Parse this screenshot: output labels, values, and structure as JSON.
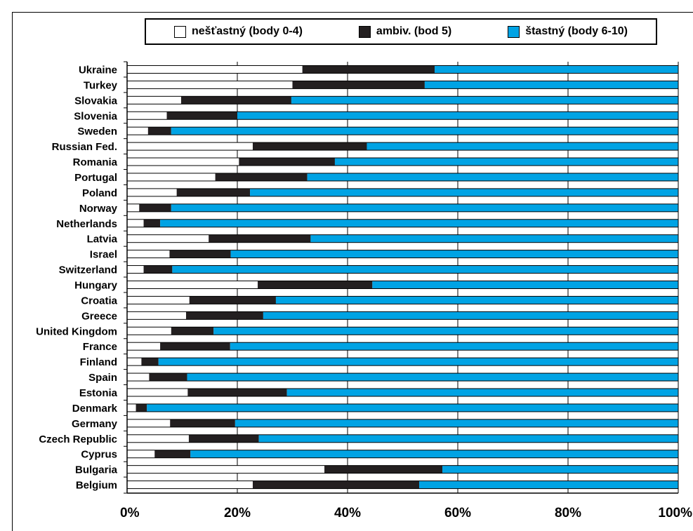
{
  "chart_data": {
    "type": "bar",
    "orientation": "horizontal",
    "stacked": true,
    "percent": true,
    "categories": [
      "Ukraine",
      "Turkey",
      "Slovakia",
      "Slovenia",
      "Sweden",
      "Russian Fed.",
      "Romania",
      "Portugal",
      "Poland",
      "Norway",
      "Netherlands",
      "Latvia",
      "Israel",
      "Switzerland",
      "Hungary",
      "Croatia",
      "Greece",
      "United Kingdom",
      "France",
      "Finland",
      "Spain",
      "Estonia",
      "Denmark",
      "Germany",
      "Czech Republic",
      "Cyprus",
      "Bulgaria",
      "Belgium"
    ],
    "series": [
      {
        "name": "nešťastný (body 0-4)",
        "color": "#ffffff",
        "values": [
          31.8,
          30.0,
          9.8,
          7.2,
          3.8,
          22.8,
          20.3,
          16.0,
          9.0,
          2.2,
          3.0,
          14.8,
          7.7,
          3.0,
          23.7,
          11.3,
          10.7,
          8.0,
          6.0,
          2.6,
          4.0,
          11.0,
          1.6,
          7.8,
          11.2,
          5.0,
          35.8,
          22.8
        ]
      },
      {
        "name": "ambiv. (bod 5)",
        "color": "#231f20",
        "values": [
          24.0,
          24.0,
          20.0,
          12.8,
          4.2,
          20.7,
          17.4,
          16.7,
          13.3,
          5.8,
          3.0,
          18.5,
          11.1,
          5.2,
          20.8,
          15.7,
          14.0,
          7.7,
          12.7,
          3.1,
          6.9,
          18.0,
          2.0,
          11.8,
          12.7,
          6.5,
          21.4,
          30.2
        ]
      },
      {
        "name": "štastný (body 6-10)",
        "color": "#00a3e4",
        "values": [
          44.2,
          46.0,
          70.2,
          80.0,
          92.0,
          56.5,
          62.3,
          67.3,
          77.7,
          92.0,
          94.0,
          66.7,
          81.2,
          91.8,
          55.5,
          73.0,
          75.3,
          84.3,
          81.3,
          94.3,
          89.1,
          71.0,
          96.4,
          80.4,
          76.1,
          88.5,
          42.8,
          47.0
        ]
      }
    ],
    "xlim": [
      0,
      100
    ],
    "xticks": [
      "0%",
      "20%",
      "40%",
      "60%",
      "80%",
      "100%"
    ],
    "grid": true,
    "legend_position": "top"
  },
  "legend": {
    "items": [
      {
        "label": "nešťastný (body 0-4)",
        "color": "#ffffff"
      },
      {
        "label": "ambiv. (bod 5)",
        "color": "#231f20"
      },
      {
        "label": "štastný (body 6-10)",
        "color": "#00a3e4"
      }
    ]
  }
}
